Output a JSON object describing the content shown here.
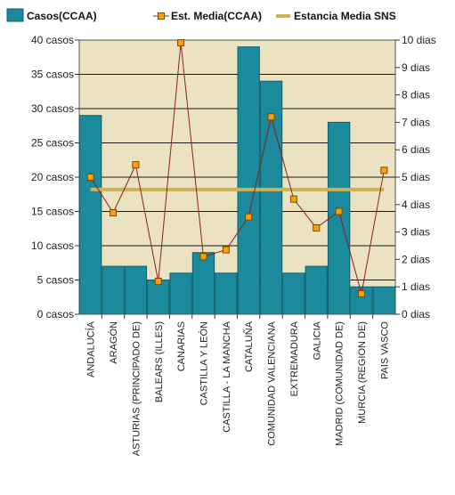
{
  "chart_data": {
    "type": "bar",
    "categories": [
      "ANDALUCÍA",
      "ARAGÓN",
      "ASTURIAS (PRINCIPADO DE)",
      "BALEARS (ILLES)",
      "CANARIAS",
      "CASTILLA Y LEÓN",
      "CASTILLA - LA MANCHA",
      "CATALUÑA",
      "COMUNIDAD VALENCIANA",
      "EXTREMADURA",
      "GALICIA",
      "MADRID (COMUNIDAD DE)",
      "MURCIA (REGION DE)",
      "PAIS VASCO"
    ],
    "series": [
      {
        "name": "Casos(CCAA)",
        "type": "bar",
        "axis": "left",
        "values": [
          29,
          7,
          7,
          5,
          6,
          9,
          6,
          39,
          34,
          6,
          7,
          28,
          4,
          4
        ]
      },
      {
        "name": "Est.  Media(CCAA)",
        "type": "line",
        "axis": "right",
        "values": [
          5.0,
          3.7,
          5.45,
          1.2,
          9.9,
          2.1,
          2.35,
          3.55,
          7.2,
          4.2,
          3.15,
          3.75,
          0.75,
          5.25
        ]
      },
      {
        "name": "Estancia Media SNS",
        "type": "line",
        "axis": "right",
        "values": [
          4.55,
          4.55,
          4.55,
          4.55,
          4.55,
          4.55,
          4.55,
          4.55,
          4.55,
          4.55,
          4.55,
          4.55,
          4.55,
          4.55
        ]
      }
    ],
    "y_left": {
      "range": [
        0,
        40
      ],
      "ticks": [
        0,
        5,
        10,
        15,
        20,
        25,
        30,
        35,
        40
      ],
      "tick_labels": [
        "0 casos",
        "5 casos",
        "10 casos",
        "15 casos",
        "20 casos",
        "25 casos",
        "30 casos",
        "35 casos",
        "40 casos"
      ]
    },
    "y_right": {
      "range": [
        0,
        10
      ],
      "ticks": [
        0,
        1,
        2,
        3,
        4,
        5,
        6,
        7,
        8,
        9,
        10
      ],
      "tick_labels": [
        "0 dias",
        "1 dias",
        "2 dias",
        "3 dias",
        "4 dias",
        "5 dias",
        "6 dias",
        "7 dias",
        "8 dias",
        "9 dias",
        "10 dias"
      ]
    },
    "grid": true,
    "legend_position": "top",
    "colors": {
      "bar": "#1a8a9c",
      "bar_edge": "#0e5f6b",
      "line": "#8a2020",
      "marker_fill": "#ffa000",
      "marker_edge": "#7a4a00",
      "sns_line": "#c8b25a",
      "plot_background": "#ebe2c2"
    }
  }
}
